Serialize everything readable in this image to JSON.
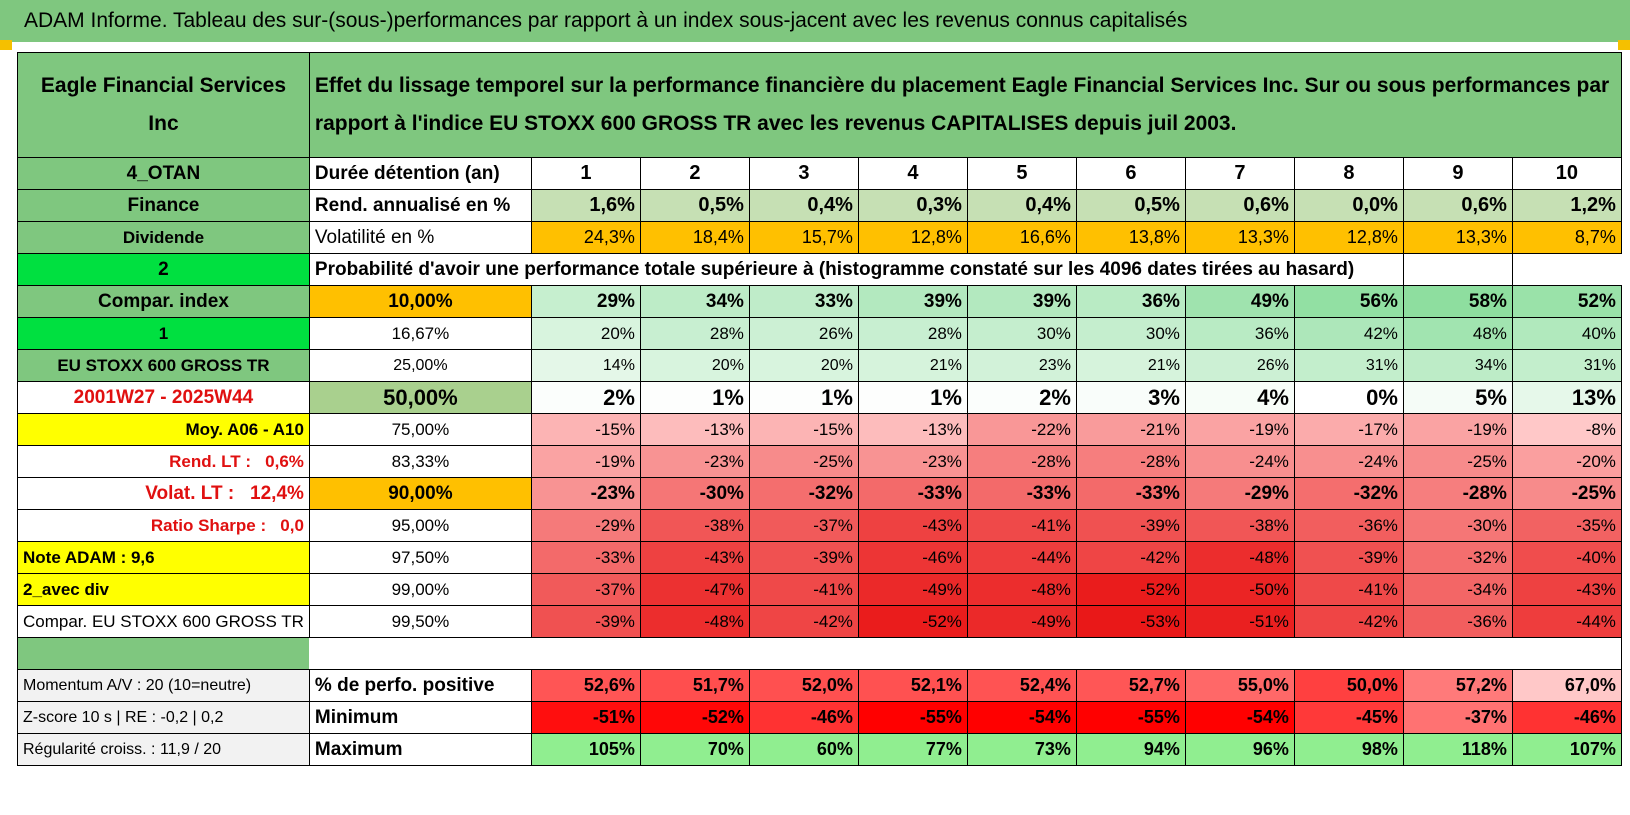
{
  "header": {
    "title": "ADAM Informe. Tableau des sur-(sous-)performances par rapport à un index sous-jacent avec les revenus connus capitalisés",
    "company": "Eagle Financial Services Inc",
    "description": "Effet du lissage temporel sur la performance financière du placement Eagle Financial Services Inc. Sur ou sous performances par rapport à l'indice EU STOXX 600 GROSS TR avec les revenus CAPITALISES depuis juil 2003."
  },
  "table": {
    "rows": [
      {
        "left": "4_OTAN",
        "label": "Durée détention (an)",
        "cells": [
          "1",
          "2",
          "3",
          "4",
          "5",
          "6",
          "7",
          "8",
          "9",
          "10"
        ]
      },
      {
        "left": "Finance",
        "label": "Rend. annualisé en %",
        "cells": [
          "1,6%",
          "0,5%",
          "0,4%",
          "0,3%",
          "0,4%",
          "0,5%",
          "0,6%",
          "0,0%",
          "0,6%",
          "1,2%"
        ]
      },
      {
        "left": "Dividende",
        "label": "Volatilité en %",
        "cells": [
          "24,3%",
          "18,4%",
          "15,7%",
          "12,8%",
          "16,6%",
          "13,8%",
          "13,3%",
          "12,8%",
          "13,3%",
          "8,7%"
        ]
      },
      {
        "left": "2",
        "label": "Probabilité d'avoir une performance totale supérieure à (histogramme constaté sur les 4096 dates tirées au hasard)",
        "cells": []
      },
      {
        "left": "Compar. index",
        "label": "10,00%",
        "cells": [
          "29%",
          "34%",
          "33%",
          "39%",
          "39%",
          "36%",
          "49%",
          "56%",
          "58%",
          "52%"
        ]
      },
      {
        "left": "1",
        "label": "16,67%",
        "cells": [
          "20%",
          "28%",
          "26%",
          "28%",
          "30%",
          "30%",
          "36%",
          "42%",
          "48%",
          "40%"
        ]
      },
      {
        "left": "EU STOXX 600 GROSS TR",
        "label": "25,00%",
        "cells": [
          "14%",
          "20%",
          "20%",
          "21%",
          "23%",
          "21%",
          "26%",
          "31%",
          "34%",
          "31%"
        ]
      },
      {
        "left": "2001W27 - 2025W44",
        "label": "50,00%",
        "cells": [
          "2%",
          "1%",
          "1%",
          "1%",
          "2%",
          "3%",
          "4%",
          "0%",
          "5%",
          "13%"
        ]
      },
      {
        "left": "Moy. A06 - A10",
        "label": "75,00%",
        "cells": [
          "-15%",
          "-13%",
          "-15%",
          "-13%",
          "-22%",
          "-21%",
          "-19%",
          "-17%",
          "-19%",
          "-8%"
        ]
      },
      {
        "left": "Rend. LT :   0,6%",
        "label": "83,33%",
        "cells": [
          "-19%",
          "-23%",
          "-25%",
          "-23%",
          "-28%",
          "-28%",
          "-24%",
          "-24%",
          "-25%",
          "-20%"
        ]
      },
      {
        "left": "Volat. LT :   12,4%",
        "label": "90,00%",
        "cells": [
          "-23%",
          "-30%",
          "-32%",
          "-33%",
          "-33%",
          "-33%",
          "-29%",
          "-32%",
          "-28%",
          "-25%"
        ]
      },
      {
        "left": "Ratio Sharpe :   0,0",
        "label": "95,00%",
        "cells": [
          "-29%",
          "-38%",
          "-37%",
          "-43%",
          "-41%",
          "-39%",
          "-38%",
          "-36%",
          "-30%",
          "-35%"
        ]
      },
      {
        "left": "Note ADAM : 9,6",
        "label": "97,50%",
        "cells": [
          "-33%",
          "-43%",
          "-39%",
          "-46%",
          "-44%",
          "-42%",
          "-48%",
          "-39%",
          "-32%",
          "-40%"
        ]
      },
      {
        "left": "2_avec div",
        "label": "99,00%",
        "cells": [
          "-37%",
          "-47%",
          "-41%",
          "-49%",
          "-48%",
          "-52%",
          "-50%",
          "-41%",
          "-34%",
          "-43%"
        ]
      },
      {
        "left": "Compar. EU STOXX 600 GROSS TR",
        "label": "99,50%",
        "cells": [
          "-39%",
          "-48%",
          "-42%",
          "-52%",
          "-49%",
          "-53%",
          "-51%",
          "-42%",
          "-36%",
          "-44%"
        ]
      },
      {
        "left": "Momentum A/V : 20 (10=neutre)",
        "label": "% de perfo. positive",
        "cells": [
          "52,6%",
          "51,7%",
          "52,0%",
          "52,1%",
          "52,4%",
          "52,7%",
          "55,0%",
          "50,0%",
          "57,2%",
          "67,0%"
        ]
      },
      {
        "left": "Z-score 10 s | RE : -0,2 | 0,2",
        "label": "Minimum",
        "cells": [
          "-51%",
          "-52%",
          "-46%",
          "-55%",
          "-54%",
          "-55%",
          "-54%",
          "-45%",
          "-37%",
          "-46%"
        ]
      },
      {
        "left": "Régularité croiss. : 11,9 / 20",
        "label": "Maximum",
        "cells": [
          "105%",
          "70%",
          "60%",
          "77%",
          "73%",
          "94%",
          "96%",
          "98%",
          "118%",
          "107%"
        ]
      }
    ]
  }
}
